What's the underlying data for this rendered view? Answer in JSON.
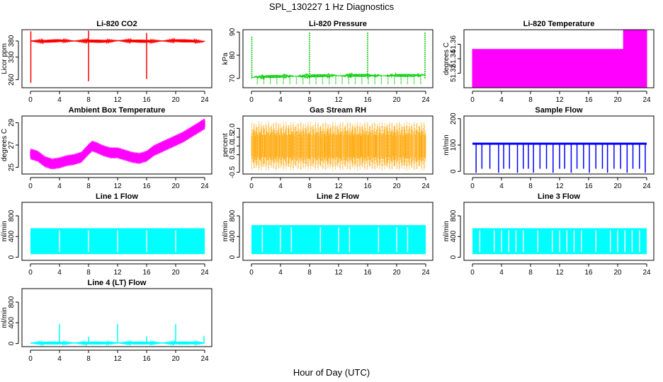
{
  "figure": {
    "title": "SPL_130227  1 Hz Diagnostics",
    "xlabel": "Hour of Day (UTC)"
  },
  "chart_data": [
    {
      "type": "line",
      "title": "Li-820 CO2",
      "ylabel": "Licor ppm",
      "color": "#ff0000",
      "xlim": [
        0,
        24
      ],
      "x_ticks": [
        "0",
        "4",
        "8",
        "12",
        "16",
        "20",
        "24"
      ],
      "ylim": [
        235,
        415
      ],
      "y_ticks": [
        {
          "v": 260,
          "label": "260"
        },
        {
          "v": 330,
          "label": "330"
        },
        {
          "v": 380,
          "label": "380"
        }
      ],
      "series": [
        {
          "x": [
            0,
            2,
            4,
            6,
            8,
            10,
            12,
            14,
            16,
            18,
            20,
            22,
            23.9
          ],
          "y": [
            380,
            379,
            381,
            380,
            380,
            379,
            381,
            380,
            379,
            380,
            381,
            380,
            378
          ]
        }
      ],
      "spikes": [
        {
          "x": 0.05,
          "y": [
            250,
            410
          ]
        },
        {
          "x": 8,
          "y": [
            255,
            412
          ]
        },
        {
          "x": 16,
          "y": [
            262,
            405
          ]
        }
      ]
    },
    {
      "type": "line",
      "title": "Li-820 Pressure",
      "ylabel": "kPa",
      "color": "#00cc00",
      "xlim": [
        0,
        24
      ],
      "x_ticks": [
        "0",
        "4",
        "8",
        "12",
        "16",
        "20",
        "24"
      ],
      "ylim": [
        66,
        91
      ],
      "y_ticks": [
        {
          "v": 70,
          "label": "70"
        },
        {
          "v": 80,
          "label": "80"
        },
        {
          "v": 90,
          "label": "90"
        }
      ],
      "series": [
        {
          "x": [
            0,
            2,
            4,
            6,
            8,
            10,
            12,
            14,
            16,
            18,
            20,
            22,
            24
          ],
          "y": [
            70.5,
            70.8,
            70.9,
            71,
            71.1,
            71.2,
            71.2,
            71.3,
            71.3,
            71.2,
            71.3,
            71.3,
            71.4
          ]
        }
      ],
      "spikes": [
        {
          "x": 0.05,
          "y": [
            70,
            88
          ]
        },
        {
          "x": 8,
          "y": [
            70,
            90
          ]
        },
        {
          "x": 16,
          "y": [
            70,
            90
          ]
        },
        {
          "x": 23.9,
          "y": [
            70,
            90
          ]
        }
      ]
    },
    {
      "type": "area",
      "title": "Li-820 Temperature",
      "ylabel": "degrees C",
      "color": "#ff00ff",
      "xlim": [
        0,
        24
      ],
      "x_ticks": [
        "0",
        "4",
        "8",
        "12",
        "16",
        "20",
        "24"
      ],
      "ylim": [
        51.3,
        51.38
      ],
      "y_ticks": [
        {
          "v": 51.32,
          "label": "51.32"
        },
        {
          "v": 51.34,
          "label": "51.34"
        },
        {
          "v": 51.36,
          "label": "51.36"
        }
      ],
      "series": [
        {
          "x": [
            0,
            20.8,
            20.8,
            21.8,
            21.8,
            24
          ],
          "y": [
            51.353,
            51.353,
            51.38,
            51.38,
            51.38,
            51.38
          ]
        }
      ]
    },
    {
      "type": "line",
      "title": "Ambient Box Temperature",
      "ylabel": "degrees C",
      "color": "#ff00ff",
      "xlim": [
        0,
        24
      ],
      "x_ticks": [
        "0",
        "4",
        "8",
        "12",
        "16",
        "20",
        "24"
      ],
      "ylim": [
        24.4,
        29.6
      ],
      "y_ticks": [
        {
          "v": 25,
          "label": "25"
        },
        {
          "v": 27,
          "label": "27"
        },
        {
          "v": 29,
          "label": "29"
        }
      ],
      "series": [
        {
          "x": [
            0,
            1,
            2,
            3,
            4,
            5,
            6,
            7,
            8,
            8.5,
            9,
            10,
            11,
            12,
            13,
            14,
            15,
            16,
            17,
            18,
            19,
            20,
            21,
            22,
            23,
            24
          ],
          "y": [
            26.2,
            26,
            25.5,
            25.3,
            25.4,
            25.6,
            25.7,
            25.9,
            26.6,
            26.9,
            26.8,
            26.5,
            26.3,
            26.3,
            26.1,
            25.9,
            25.8,
            26.0,
            26.5,
            26.8,
            27.1,
            27.4,
            27.7,
            28.1,
            28.5,
            28.9
          ]
        }
      ],
      "band": 0.5
    },
    {
      "type": "line",
      "title": "Gas Stream RH",
      "ylabel": "percent",
      "color": "#ffa500",
      "xlim": [
        0,
        24
      ],
      "x_ticks": [
        "0",
        "4",
        "8",
        "12",
        "16",
        "20",
        "24"
      ],
      "ylim": [
        -0.6,
        2.7
      ],
      "y_ticks": [
        {
          "v": -0.5,
          "label": "-0.5"
        },
        {
          "v": 0.5,
          "label": "0.5"
        },
        {
          "v": 1.0,
          "label": "1.0"
        },
        {
          "v": 1.5,
          "label": "1.5"
        },
        {
          "v": 2.0,
          "label": "2.0"
        }
      ],
      "series": [
        {
          "x": [
            0,
            24
          ],
          "y": [
            1.0,
            1.0
          ]
        }
      ],
      "band": [
        -0.4,
        2.4
      ]
    },
    {
      "type": "line",
      "title": "Sample Flow",
      "ylabel": "ml/min",
      "color": "#0000ff",
      "xlim": [
        0,
        24
      ],
      "x_ticks": [
        "0",
        "4",
        "8",
        "12",
        "16",
        "20",
        "24"
      ],
      "ylim": [
        -10,
        210
      ],
      "y_ticks": [
        {
          "v": 0,
          "label": "0"
        },
        {
          "v": 100,
          "label": "100"
        },
        {
          "v": 200,
          "label": "200"
        }
      ],
      "series": [
        {
          "x": [
            0,
            24
          ],
          "y": [
            105,
            105
          ]
        }
      ],
      "dips": [
        0.5,
        1.3,
        2.4,
        3.6,
        4.3,
        5.1,
        6.2,
        7.0,
        7.7,
        8.4,
        9.3,
        10.2,
        11.1,
        12.0,
        12.7,
        13.6,
        14.4,
        15.3,
        16.1,
        17.0,
        17.9,
        18.6,
        19.5,
        20.4,
        21.3,
        22.1,
        23.0,
        23.8
      ]
    },
    {
      "type": "area",
      "title": "Line 1 Flow",
      "ylabel": "ml/min",
      "color": "#00ffff",
      "xlim": [
        0,
        24
      ],
      "x_ticks": [
        "0",
        "4",
        "8",
        "12",
        "16",
        "20",
        "24"
      ],
      "ylim": [
        -60,
        1060
      ],
      "y_ticks": [
        {
          "v": 0,
          "label": "0"
        },
        {
          "v": 400,
          "label": "400"
        },
        {
          "v": 800,
          "label": "800"
        }
      ],
      "series": [
        {
          "x": [
            0,
            24
          ],
          "y": [
            560,
            560
          ]
        }
      ],
      "base": 60,
      "gaps": [
        4,
        8,
        12,
        16,
        20
      ]
    },
    {
      "type": "area",
      "title": "Line 2 Flow",
      "ylabel": "ml/min",
      "color": "#00ffff",
      "xlim": [
        0,
        24
      ],
      "x_ticks": [
        "0",
        "4",
        "8",
        "12",
        "16",
        "20",
        "24"
      ],
      "ylim": [
        -60,
        1060
      ],
      "y_ticks": [
        {
          "v": 0,
          "label": "0"
        },
        {
          "v": 400,
          "label": "400"
        },
        {
          "v": 800,
          "label": "800"
        }
      ],
      "series": [
        {
          "x": [
            0,
            24
          ],
          "y": [
            620,
            620
          ]
        }
      ],
      "base": 60,
      "gaps": [
        1.5,
        4,
        5.5,
        9.5,
        12,
        13.5,
        17.5,
        20,
        21.5
      ]
    },
    {
      "type": "area",
      "title": "Line 3 Flow",
      "ylabel": "ml/min",
      "color": "#00ffff",
      "xlim": [
        0,
        24
      ],
      "x_ticks": [
        "0",
        "4",
        "8",
        "12",
        "16",
        "20",
        "24"
      ],
      "ylim": [
        -60,
        1060
      ],
      "y_ticks": [
        {
          "v": 0,
          "label": "0"
        },
        {
          "v": 400,
          "label": "400"
        },
        {
          "v": 800,
          "label": "800"
        }
      ],
      "series": [
        {
          "x": [
            0,
            24
          ],
          "y": [
            560,
            560
          ]
        }
      ],
      "base": 60,
      "gaps": [
        1,
        3,
        4,
        5,
        6,
        7,
        9,
        11,
        12,
        13,
        14,
        15,
        17,
        19,
        20,
        21,
        22,
        23
      ]
    },
    {
      "type": "line",
      "title": "Line 4 (LT) Flow",
      "ylabel": "ml/min",
      "color": "#00ffff",
      "xlim": [
        0,
        24
      ],
      "x_ticks": [
        "0",
        "4",
        "8",
        "12",
        "16",
        "20",
        "24"
      ],
      "ylim": [
        -60,
        1060
      ],
      "y_ticks": [
        {
          "v": 0,
          "label": "0"
        },
        {
          "v": 400,
          "label": "400"
        },
        {
          "v": 800,
          "label": "800"
        }
      ],
      "series": [
        {
          "x": [
            0,
            24
          ],
          "y": [
            10,
            10
          ]
        }
      ],
      "spikes": [
        {
          "x": 4,
          "y": [
            10,
            380
          ]
        },
        {
          "x": 8,
          "y": [
            10,
            130
          ]
        },
        {
          "x": 12,
          "y": [
            10,
            380
          ]
        },
        {
          "x": 16,
          "y": [
            10,
            140
          ]
        },
        {
          "x": 20,
          "y": [
            10,
            380
          ]
        },
        {
          "x": 23.9,
          "y": [
            10,
            150
          ]
        }
      ]
    }
  ]
}
